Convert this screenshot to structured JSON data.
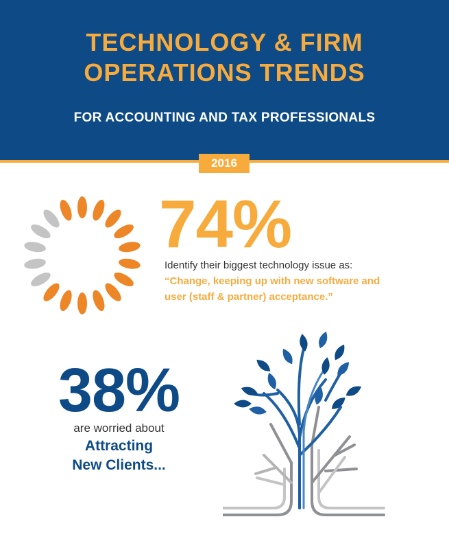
{
  "header": {
    "title_line1": "TECHNOLOGY & FIRM",
    "title_line2": "OPERATIONS TRENDS",
    "subtitle": "FOR ACCOUNTING AND TAX PROFESSIONALS",
    "year": "2016"
  },
  "stat1": {
    "value": "74%",
    "description": "Identify their biggest technology issue as:",
    "quote_line1": "“Change, keeping up with new software and",
    "quote_line2": "user (staff &  partner) acceptance.”",
    "icon": "loading-ring-icon"
  },
  "stat2": {
    "value": "38%",
    "description": "are worried about",
    "topic_line1": "Attracting",
    "topic_line2": "New Clients...",
    "icon": "tree-icon"
  },
  "colors": {
    "navy": "#0d4a86",
    "orange": "#f7ab3d",
    "ring_orange": "#ec8627",
    "ring_grey": "#c4c4c4",
    "tree_grey": "#8f9093",
    "leaf_blue": "#1f5fa3"
  }
}
